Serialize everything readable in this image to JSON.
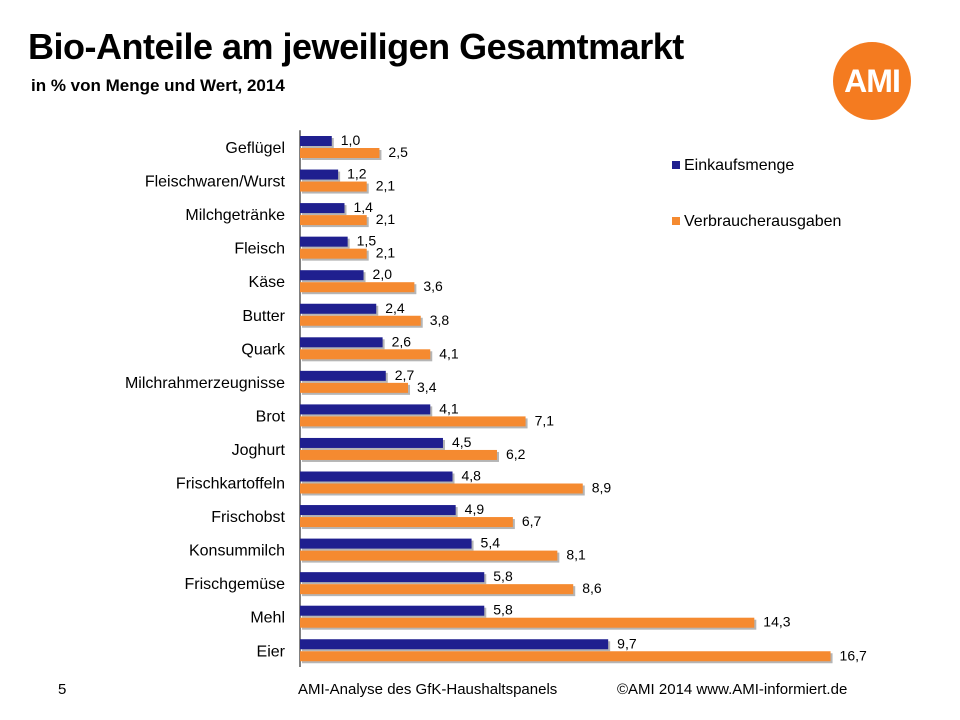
{
  "header": {
    "title": "Bio-Anteile am jeweiligen Gesamtmarkt",
    "subtitle": "in % von Menge und Wert, 2014",
    "logo_text": "AMI"
  },
  "footer": {
    "page_number": "5",
    "source": "AMI-Analyse des GfK-Haushaltspanels",
    "copyright": "©AMI 2014 www.AMI-informiert.de"
  },
  "colors": {
    "einkaufsmenge": "#1f1f8f",
    "verbraucherausgaben": "#f58a30",
    "logo": "#f47b20"
  },
  "chart_data": {
    "type": "bar",
    "orientation": "horizontal",
    "title": "Bio-Anteile am jeweiligen Gesamtmarkt",
    "subtitle": "in % von Menge und Wert, 2014",
    "xlim": [
      0,
      18
    ],
    "grid": false,
    "legend_position": "top-right",
    "categories": [
      "Geflügel",
      "Fleischwaren/Wurst",
      "Milchgetränke",
      "Fleisch",
      "Käse",
      "Butter",
      "Quark",
      "Milchrahmerzeugnisse",
      "Brot",
      "Joghurt",
      "Frischkartoffeln",
      "Frischobst",
      "Konsummilch",
      "Frischgemüse",
      "Mehl",
      "Eier"
    ],
    "series": [
      {
        "name": "Einkaufsmenge",
        "values": [
          1.0,
          1.2,
          1.4,
          1.5,
          2.0,
          2.4,
          2.6,
          2.7,
          4.1,
          4.5,
          4.8,
          4.9,
          5.4,
          5.8,
          5.8,
          9.7
        ],
        "labels": [
          "1,0",
          "1,2",
          "1,4",
          "1,5",
          "2,0",
          "2,4",
          "2,6",
          "2,7",
          "4,1",
          "4,5",
          "4,8",
          "4,9",
          "5,4",
          "5,8",
          "5,8",
          "9,7"
        ]
      },
      {
        "name": "Verbraucherausgaben",
        "values": [
          2.5,
          2.1,
          2.1,
          2.1,
          3.6,
          3.8,
          4.1,
          3.4,
          7.1,
          6.2,
          8.9,
          6.7,
          8.1,
          8.6,
          14.3,
          16.7
        ],
        "labels": [
          "2,5",
          "2,1",
          "2,1",
          "2,1",
          "3,6",
          "3,8",
          "4,1",
          "3,4",
          "7,1",
          "6,2",
          "8,9",
          "6,7",
          "8,1",
          "8,6",
          "14,3",
          "16,7"
        ]
      }
    ]
  }
}
